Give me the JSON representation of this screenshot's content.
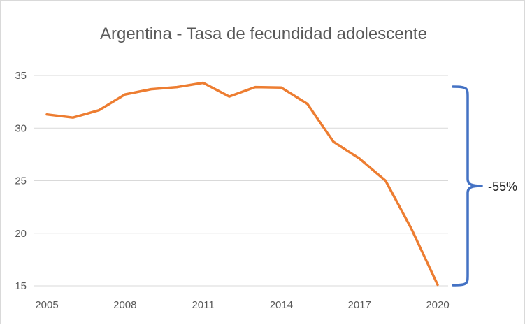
{
  "chart_data": {
    "type": "line",
    "title": "Argentina - Tasa de fecundidad adolescente",
    "xlabel": "",
    "ylabel": "",
    "x": [
      2005,
      2006,
      2007,
      2008,
      2009,
      2010,
      2011,
      2012,
      2013,
      2014,
      2015,
      2016,
      2017,
      2018,
      2019,
      2020
    ],
    "series": [
      {
        "values": [
          31.3,
          31.0,
          31.7,
          33.2,
          33.7,
          33.9,
          34.3,
          33.0,
          33.9,
          33.85,
          32.3,
          28.7,
          27.1,
          25.0,
          20.4,
          15.1
        ]
      }
    ],
    "xticks": [
      "2005",
      "2008",
      "2011",
      "2014",
      "2017",
      "2020"
    ],
    "yticks": [
      "15",
      "20",
      "25",
      "30",
      "35"
    ],
    "ylim": [
      15,
      35
    ],
    "grid": "horizontal",
    "legend": "none",
    "colors": {
      "line": "#ed7d31",
      "bracket": "#4472c4",
      "grid": "#d9d9d9"
    },
    "annotation": {
      "label": "-55%",
      "from_value": 34,
      "to_value": 15
    }
  }
}
